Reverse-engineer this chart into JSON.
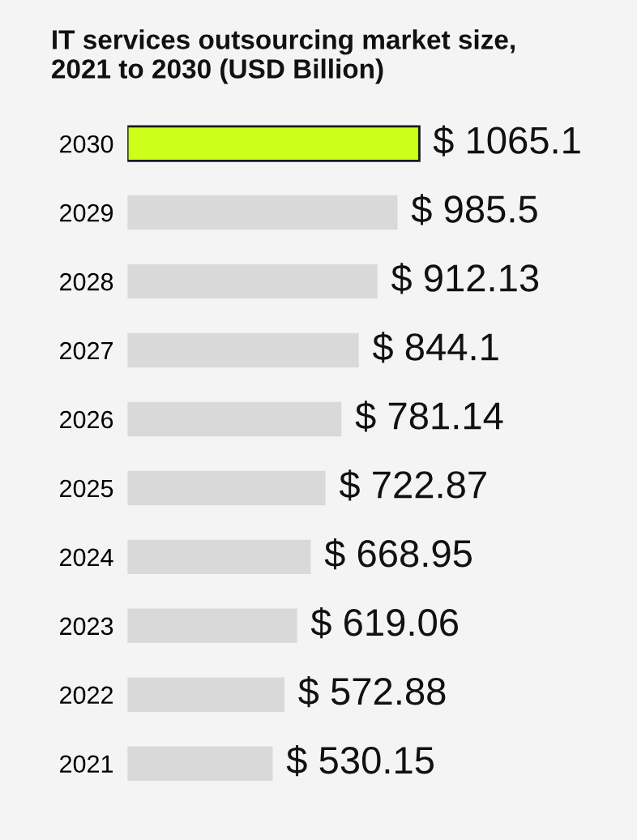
{
  "chart_data": {
    "type": "bar",
    "orientation": "horizontal",
    "title": "IT services outsourcing market size,\n2021 to 2030 (USD Billion)",
    "categories": [
      "2030",
      "2029",
      "2028",
      "2027",
      "2026",
      "2025",
      "2024",
      "2023",
      "2022",
      "2021"
    ],
    "values": [
      1065.1,
      985.5,
      912.13,
      844.1,
      781.14,
      722.87,
      668.95,
      619.06,
      572.88,
      530.15
    ],
    "colors": [
      "#ccff1a",
      "#d9d9d9",
      "#d9d9d9",
      "#d9d9d9",
      "#d9d9d9",
      "#d9d9d9",
      "#d9d9d9",
      "#d9d9d9",
      "#d9d9d9",
      "#d9d9d9"
    ],
    "value_labels": [
      "$ 1065.1",
      "$ 985.5",
      "$ 912.13",
      "$ 844.1",
      "$ 781.14",
      "$ 722.87",
      "$ 668.95",
      "$ 619.06",
      "$ 572.88",
      "$ 530.15"
    ],
    "grid": false,
    "legend": false,
    "tick_labels": "y"
  }
}
